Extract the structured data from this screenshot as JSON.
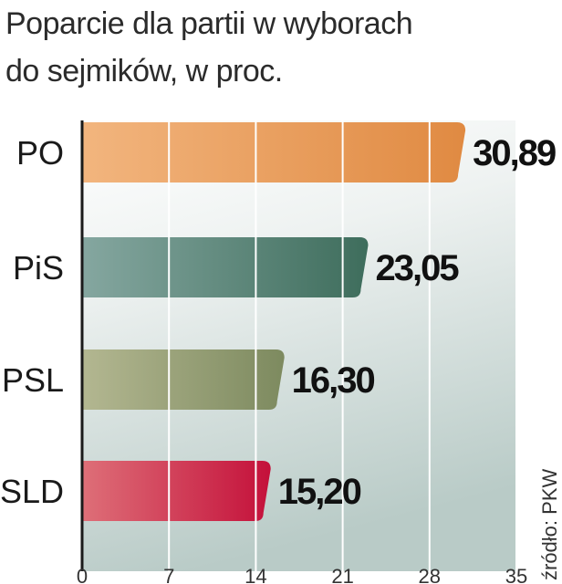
{
  "title_lines": [
    "Poparcie dla partii w wyborach",
    "do sejmików, w proc."
  ],
  "source": "źródło: PKW",
  "chart_data": {
    "type": "bar",
    "orientation": "horizontal",
    "title": "Poparcie dla partii w wyborach do sejmików, w proc.",
    "categories": [
      "PO",
      "PiS",
      "PSL",
      "SLD"
    ],
    "values": [
      30.89,
      23.05,
      16.3,
      15.2
    ],
    "value_labels": [
      "30,89",
      "23,05",
      "16,30",
      "15,20"
    ],
    "xlim": [
      0,
      35
    ],
    "xticks": [
      0,
      7,
      14,
      21,
      28,
      35
    ],
    "grid": true,
    "colors": [
      [
        "#f2b57e",
        "#e08a42"
      ],
      [
        "#85a7a0",
        "#3e6d5c"
      ],
      [
        "#b3b791",
        "#7d8a5f"
      ],
      [
        "#de6f78",
        "#c4103a"
      ]
    ]
  }
}
